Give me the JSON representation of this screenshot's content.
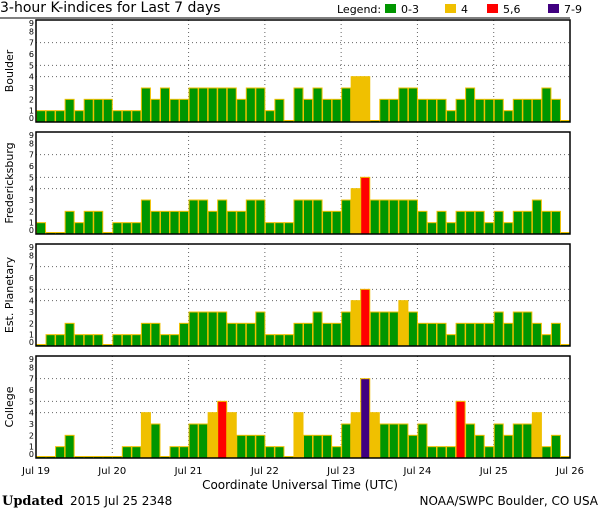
{
  "chart_data": {
    "type": "bar",
    "title": "3-hour K-indices for Last 7 days",
    "xlabel": "Coordinate Universal Time (UTC)",
    "x_ticks": [
      "Jul 19",
      "Jul 20",
      "Jul 21",
      "Jul 22",
      "Jul 23",
      "Jul 24",
      "Jul 25",
      "Jul 26"
    ],
    "bars_per_day": 8,
    "ylim": [
      0,
      9
    ],
    "y_ticks": [
      0,
      1,
      2,
      3,
      4,
      5,
      6,
      7,
      8,
      9
    ],
    "grid_y": [
      4,
      5,
      7
    ],
    "grid_x": "day boundaries",
    "legend": {
      "label": "Legend:",
      "placement": "top-right",
      "entries": [
        {
          "label": "0-3",
          "color": "#009600"
        },
        {
          "label": "4",
          "color": "#f0c000"
        },
        {
          "label": "5,6",
          "color": "#ff0000"
        },
        {
          "label": "7-9",
          "color": "#400080"
        }
      ]
    },
    "bar_outline_color": "#f0c000",
    "series": [
      {
        "name": "Boulder",
        "values": [
          1,
          1,
          1,
          2,
          1,
          2,
          2,
          2,
          1,
          1,
          1,
          3,
          2,
          3,
          2,
          2,
          3,
          3,
          3,
          3,
          3,
          2,
          3,
          3,
          1,
          2,
          0,
          3,
          2,
          3,
          2,
          2,
          3,
          4,
          4,
          0,
          2,
          2,
          3,
          3,
          2,
          2,
          2,
          1,
          2,
          3,
          2,
          2,
          2,
          1,
          2,
          2,
          2,
          3,
          2,
          0
        ]
      },
      {
        "name": "Fredericksburg",
        "values": [
          1,
          0,
          0,
          2,
          1,
          2,
          2,
          0,
          1,
          1,
          1,
          3,
          2,
          2,
          2,
          2,
          3,
          3,
          2,
          3,
          2,
          2,
          3,
          3,
          1,
          1,
          1,
          3,
          3,
          3,
          2,
          2,
          3,
          4,
          5,
          3,
          3,
          3,
          3,
          3,
          2,
          1,
          2,
          1,
          2,
          2,
          2,
          1,
          2,
          1,
          2,
          2,
          3,
          2,
          2,
          0
        ]
      },
      {
        "name": "Est. Planetary",
        "values": [
          0,
          1,
          1,
          2,
          1,
          1,
          1,
          0,
          1,
          1,
          1,
          2,
          2,
          1,
          1,
          2,
          3,
          3,
          3,
          3,
          2,
          2,
          2,
          3,
          1,
          1,
          1,
          2,
          2,
          3,
          2,
          2,
          3,
          4,
          5,
          3,
          3,
          3,
          4,
          3,
          2,
          2,
          2,
          1,
          2,
          2,
          2,
          2,
          3,
          2,
          3,
          3,
          2,
          1,
          2,
          0
        ]
      },
      {
        "name": "College",
        "values": [
          0,
          0,
          1,
          2,
          0,
          0,
          0,
          0,
          0,
          1,
          1,
          4,
          3,
          0,
          1,
          1,
          3,
          3,
          4,
          5,
          4,
          2,
          2,
          2,
          1,
          1,
          0,
          4,
          2,
          2,
          2,
          1,
          3,
          4,
          7,
          4,
          3,
          3,
          3,
          2,
          3,
          1,
          1,
          1,
          5,
          3,
          2,
          1,
          3,
          2,
          3,
          3,
          4,
          1,
          2,
          0
        ]
      }
    ]
  },
  "footer": {
    "updated_label": "Updated",
    "updated_value": "2015 Jul 25 2348",
    "source": "NOAA/SWPC Boulder, CO USA"
  }
}
